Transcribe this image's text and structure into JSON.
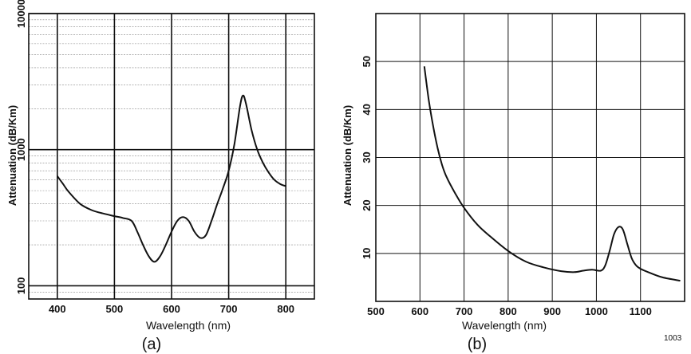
{
  "chart_data": [
    {
      "type": "line",
      "panel_label": "(a)",
      "xlabel": "Wavelength (nm)",
      "ylabel": "Attenuation (dB/Km)",
      "x_scale": "linear",
      "y_scale": "log",
      "xlim": [
        350,
        850
      ],
      "ylim": [
        80,
        10000
      ],
      "x_ticks": [
        400,
        500,
        600,
        700,
        800
      ],
      "y_ticks": [
        100,
        1000,
        10000
      ],
      "grid": "major + minor log gridlines",
      "series": [
        {
          "x": [
            400,
            410,
            420,
            440,
            460,
            480,
            500,
            515,
            530,
            540,
            550,
            560,
            570,
            580,
            590,
            600,
            610,
            620,
            630,
            640,
            650,
            660,
            670,
            680,
            690,
            700,
            710,
            720,
            725,
            730,
            740,
            750,
            760,
            770,
            780,
            790,
            800
          ],
          "y": [
            640,
            560,
            490,
            400,
            360,
            340,
            325,
            315,
            300,
            250,
            200,
            165,
            150,
            165,
            200,
            250,
            300,
            320,
            300,
            250,
            225,
            235,
            300,
            400,
            520,
            700,
            1100,
            2100,
            2500,
            2200,
            1400,
            1000,
            800,
            680,
            600,
            560,
            540
          ]
        }
      ]
    },
    {
      "type": "line",
      "panel_label": "(b)",
      "xlabel": "Wavelength (nm)",
      "ylabel": "Attenuation (dB/Km)",
      "x_scale": "linear",
      "y_scale": "linear",
      "xlim": [
        500,
        1200
      ],
      "ylim": [
        0,
        60
      ],
      "x_ticks": [
        500,
        600,
        700,
        800,
        900,
        1000,
        1100
      ],
      "x_tick_labels": [
        "500",
        "600",
        "700",
        "800",
        "900",
        "1000",
        "1100"
      ],
      "y_ticks": [
        10,
        20,
        30,
        40,
        50
      ],
      "grid": "major gridlines",
      "series": [
        {
          "x": [
            610,
            620,
            630,
            640,
            650,
            660,
            680,
            700,
            730,
            760,
            800,
            840,
            880,
            920,
            950,
            970,
            990,
            1010,
            1020,
            1030,
            1040,
            1050,
            1060,
            1070,
            1080,
            1090,
            1100,
            1120,
            1150,
            1190
          ],
          "y": [
            49,
            42,
            36.5,
            32,
            28.5,
            26,
            22.5,
            19.5,
            16,
            13.5,
            10.5,
            8.3,
            7.1,
            6.3,
            6.1,
            6.4,
            6.6,
            6.4,
            7.5,
            10.5,
            14,
            15.5,
            15,
            12,
            9,
            7.5,
            6.8,
            6,
            5,
            4.3
          ]
        }
      ]
    }
  ],
  "figure_code": "1003"
}
